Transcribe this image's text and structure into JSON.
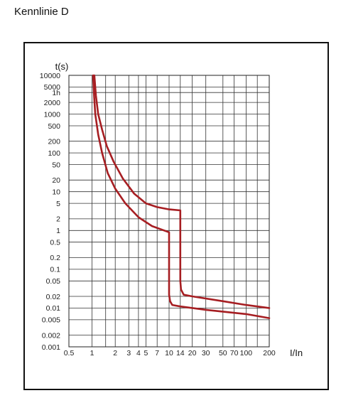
{
  "heading": "Kennlinie D",
  "chart_data": {
    "type": "line",
    "title": "Kennlinie D",
    "xlabel": "I/In",
    "ylabel": "t(s)",
    "x_scale": "log",
    "y_scale": "log",
    "xlim": [
      0.5,
      200
    ],
    "ylim": [
      0.001,
      10000
    ],
    "grid": true,
    "x_ticks": [
      {
        "value": 0.5,
        "label": "0.5"
      },
      {
        "value": 1,
        "label": "1"
      },
      {
        "value": 2,
        "label": "2"
      },
      {
        "value": 3,
        "label": "3"
      },
      {
        "value": 4,
        "label": "4"
      },
      {
        "value": 5,
        "label": "5"
      },
      {
        "value": 7,
        "label": "7"
      },
      {
        "value": 10,
        "label": "10"
      },
      {
        "value": 14,
        "label": "14"
      },
      {
        "value": 20,
        "label": "20"
      },
      {
        "value": 30,
        "label": "30"
      },
      {
        "value": 50,
        "label": "50"
      },
      {
        "value": 70,
        "label": "70"
      },
      {
        "value": 100,
        "label": "100"
      },
      {
        "value": 200,
        "label": "200"
      }
    ],
    "y_ticks": [
      {
        "value": 10000,
        "label": "10000"
      },
      {
        "value": 5000,
        "label": "5000"
      },
      {
        "value": 3600,
        "label": "1h"
      },
      {
        "value": 2000,
        "label": "2000"
      },
      {
        "value": 1000,
        "label": "1000"
      },
      {
        "value": 500,
        "label": "500"
      },
      {
        "value": 200,
        "label": "200"
      },
      {
        "value": 100,
        "label": "100"
      },
      {
        "value": 50,
        "label": "50"
      },
      {
        "value": 20,
        "label": "20"
      },
      {
        "value": 10,
        "label": "10"
      },
      {
        "value": 5,
        "label": "5"
      },
      {
        "value": 2,
        "label": "2"
      },
      {
        "value": 1,
        "label": "1"
      },
      {
        "value": 0.5,
        "label": "0.5"
      },
      {
        "value": 0.2,
        "label": "0.2"
      },
      {
        "value": 0.1,
        "label": "0.1"
      },
      {
        "value": 0.05,
        "label": "0.05"
      },
      {
        "value": 0.02,
        "label": "0.02"
      },
      {
        "value": 0.01,
        "label": "0.01"
      },
      {
        "value": 0.005,
        "label": "0.005"
      },
      {
        "value": 0.002,
        "label": "0.002"
      },
      {
        "value": 0.001,
        "label": "0.001"
      }
    ],
    "v_gridlines": [
      0.5,
      1,
      1.5,
      2,
      3,
      4,
      5,
      7,
      10,
      14,
      20,
      30,
      50,
      70,
      100,
      140,
      200
    ],
    "h_gridlines": [
      10000,
      5000,
      3600,
      2000,
      1000,
      500,
      200,
      100,
      50,
      20,
      10,
      5,
      2,
      1,
      0.5,
      0.2,
      0.1,
      0.05,
      0.02,
      0.01,
      0.005,
      0.002,
      0.001
    ],
    "line_color": "#a61e22",
    "series": [
      {
        "points": [
          [
            1.07,
            10000
          ],
          [
            1.12,
            3000
          ],
          [
            1.2,
            1000
          ],
          [
            1.35,
            400
          ],
          [
            1.55,
            150
          ],
          [
            1.9,
            60
          ],
          [
            2.5,
            22
          ],
          [
            3.5,
            9
          ],
          [
            5,
            5
          ],
          [
            7,
            4
          ],
          [
            10,
            3.5
          ],
          [
            14,
            3.3
          ],
          [
            14,
            0.05
          ],
          [
            14.3,
            0.03
          ],
          [
            15.5,
            0.022
          ],
          [
            20,
            0.02
          ],
          [
            50,
            0.015
          ],
          [
            100,
            0.012
          ],
          [
            200,
            0.01
          ]
        ]
      },
      {
        "points": [
          [
            1.03,
            10000
          ],
          [
            1.06,
            3000
          ],
          [
            1.1,
            1000
          ],
          [
            1.2,
            300
          ],
          [
            1.35,
            100
          ],
          [
            1.6,
            30
          ],
          [
            2,
            12
          ],
          [
            2.7,
            5
          ],
          [
            4,
            2.2
          ],
          [
            6,
            1.3
          ],
          [
            10,
            0.9
          ],
          [
            10,
            0.022
          ],
          [
            10.3,
            0.015
          ],
          [
            11,
            0.012
          ],
          [
            14,
            0.011
          ],
          [
            30,
            0.009
          ],
          [
            100,
            0.007
          ],
          [
            200,
            0.0055
          ]
        ]
      }
    ]
  }
}
